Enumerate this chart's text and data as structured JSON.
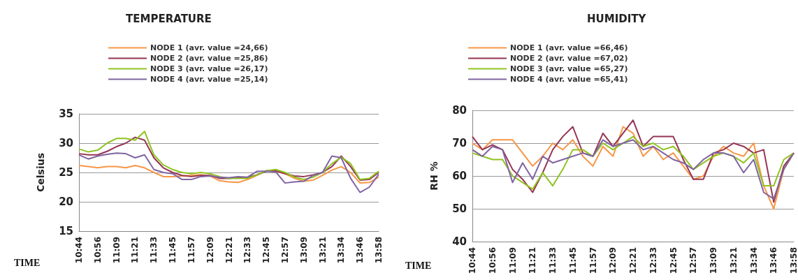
{
  "chart_data": [
    {
      "type": "line",
      "title": "TEMPERATURE",
      "xlabel": "TIME",
      "ylabel": "Celsius",
      "categories": [
        "10:44",
        null,
        "10:56",
        null,
        "11:09",
        null,
        "11:21",
        null,
        "11:33",
        null,
        "11:45",
        null,
        "11:57",
        null,
        "12:09",
        null,
        "12:21",
        null,
        "12:33",
        null,
        "12:45",
        null,
        "12:57",
        null,
        "13:09",
        null,
        "13:21",
        null,
        "13:34",
        null,
        "13:46",
        null,
        "13:58"
      ],
      "ylim": [
        15,
        35
      ],
      "yticks": [
        15,
        20,
        25,
        30,
        35
      ],
      "grid": "y",
      "legend": "top",
      "marker": "none",
      "line_style": "solid",
      "series": [
        {
          "name": "NODE 1 (avr. value =24,66)",
          "color": "#f79646",
          "values": [
            26.2,
            26,
            25.8,
            26,
            26,
            25.8,
            26.2,
            25.8,
            25,
            24.3,
            24.3,
            24.4,
            24.5,
            24.6,
            24.4,
            23.6,
            23.4,
            23.3,
            23.8,
            24.5,
            25.3,
            25.2,
            24.8,
            24,
            23.5,
            23.7,
            24.5,
            25.4,
            26,
            25,
            23.2,
            23.3,
            24.2
          ]
        },
        {
          "name": "NODE 2 (avr. value =25,86)",
          "color": "#953553",
          "values": [
            28.2,
            28,
            28,
            28.6,
            29.4,
            30,
            31,
            30.5,
            27.5,
            25.8,
            25,
            24.5,
            24.3,
            24.5,
            24.5,
            24,
            24,
            24.1,
            24.2,
            24.6,
            25.2,
            25.3,
            24.8,
            24.4,
            24.3,
            24.6,
            25,
            26,
            27.8,
            26,
            23.7,
            23.8,
            25
          ]
        },
        {
          "name": "NODE 3 (avr. value =26,17)",
          "color": "#8fc31f",
          "values": [
            29,
            28.5,
            28.8,
            30,
            30.8,
            30.8,
            30.5,
            32,
            28,
            26.3,
            25.5,
            25,
            24.8,
            25,
            24.8,
            24.3,
            24,
            24,
            24,
            24.6,
            25.3,
            25.5,
            25,
            24.2,
            23.8,
            24.2,
            25,
            26.5,
            27.6,
            26.5,
            23.8,
            24,
            25.2
          ]
        },
        {
          "name": "NODE 4 (avr. value =25,14)",
          "color": "#8064a2",
          "values": [
            28,
            27.3,
            27.8,
            28.1,
            28.3,
            28.2,
            27.5,
            28,
            25.5,
            25,
            24.8,
            23.8,
            23.8,
            24.3,
            24.4,
            24.2,
            24.1,
            24.3,
            24.2,
            25.2,
            25.2,
            25.1,
            23.2,
            23.4,
            23.5,
            24.5,
            25,
            27.8,
            27.5,
            24,
            21.6,
            22.5,
            24.7
          ]
        }
      ]
    },
    {
      "type": "line",
      "title": "HUMIDITY",
      "xlabel": "TIME",
      "ylabel": "RH %",
      "categories": [
        "10:44",
        null,
        "10:56",
        null,
        "11:09",
        null,
        "11:21",
        null,
        "11:33",
        null,
        "11:45",
        null,
        "11:57",
        null,
        "12:09",
        null,
        "12:21",
        null,
        "12:33",
        null,
        "12:45",
        null,
        "12:57",
        null,
        "13:09",
        null,
        "13:21",
        null,
        "13:34",
        null,
        "13:46",
        null,
        "13:58"
      ],
      "ylim": [
        40,
        80
      ],
      "yticks": [
        40,
        50,
        60,
        70,
        80
      ],
      "grid": "y",
      "legend": "top",
      "marker": "none",
      "line_style": "solid",
      "series": [
        {
          "name": "NODE 1 (avr. value =66,46)",
          "color": "#f79646",
          "values": [
            70,
            68,
            71,
            71,
            71,
            67,
            63,
            66,
            70,
            68,
            71,
            66,
            63,
            69,
            66,
            75,
            73,
            66,
            69,
            65,
            67,
            63,
            59,
            60,
            66,
            69,
            67,
            66,
            70,
            57,
            50,
            62,
            67
          ]
        },
        {
          "name": "NODE 2 (avr. value =67,02)",
          "color": "#953553",
          "values": [
            72,
            68,
            69.5,
            68,
            62,
            59,
            55,
            61,
            68,
            72,
            75,
            67,
            66,
            73,
            69,
            73,
            77,
            69,
            72,
            72,
            72,
            65,
            59,
            59,
            67,
            68,
            70,
            69,
            67,
            68,
            52,
            63,
            67
          ]
        },
        {
          "name": "NODE 3 (avr. value =65,27)",
          "color": "#8fc31f",
          "values": [
            67,
            66,
            65,
            65,
            60,
            58,
            56,
            61,
            57,
            62,
            68,
            68,
            66,
            70,
            68,
            70,
            72,
            69,
            70,
            68,
            69,
            66,
            62,
            64,
            66,
            67,
            66,
            64,
            67,
            57,
            57,
            65,
            67
          ]
        },
        {
          "name": "NODE 4 (avr. value =65,41)",
          "color": "#8064a2",
          "values": [
            68,
            66,
            69,
            68,
            58,
            64,
            59,
            66,
            64,
            65,
            66,
            67,
            66,
            71,
            69,
            70,
            71,
            68,
            69,
            67,
            65,
            64,
            62,
            65,
            67,
            67,
            66,
            61,
            65,
            55,
            53,
            62,
            67
          ]
        }
      ]
    }
  ]
}
